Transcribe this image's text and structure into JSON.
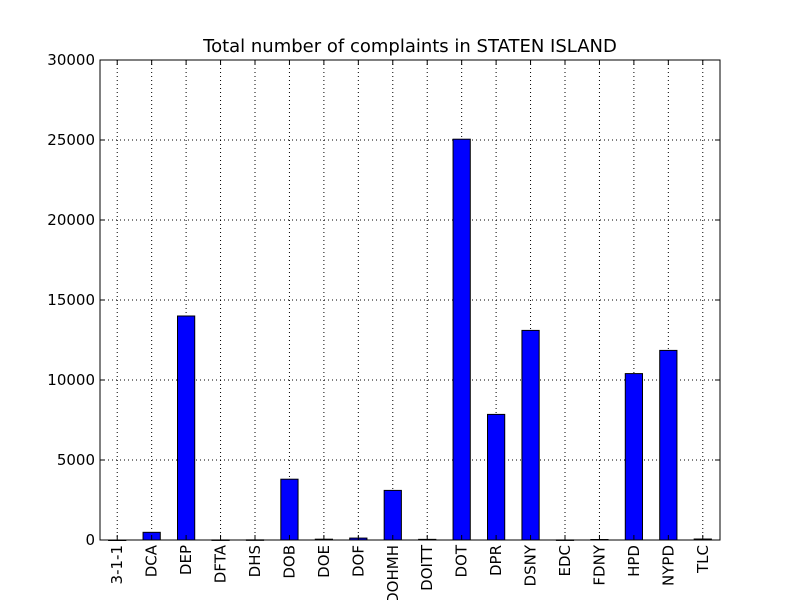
{
  "chart_data": {
    "type": "bar",
    "title": "Total number of complaints in STATEN ISLAND",
    "xlabel": "",
    "ylabel": "",
    "categories": [
      "3-1-1",
      "DCA",
      "DEP",
      "DFTA",
      "DHS",
      "DOB",
      "DOE",
      "DOF",
      "DOHMH",
      "DOITT",
      "DOT",
      "DPR",
      "DSNY",
      "EDC",
      "FDNY",
      "HPD",
      "NYPD",
      "TLC"
    ],
    "values": [
      0,
      480,
      14000,
      5,
      10,
      3800,
      50,
      120,
      3100,
      40,
      25050,
      7850,
      13100,
      5,
      30,
      10400,
      11850,
      60
    ],
    "ylim": [
      0,
      30000
    ],
    "yticks": [
      "0",
      "5000",
      "10000",
      "15000",
      "20000",
      "25000",
      "30000"
    ],
    "grid": true,
    "legend": "none",
    "colors": {
      "bar": "#0000ff",
      "edge": "#000000",
      "grid": "#000000",
      "frame": "#000000"
    }
  }
}
